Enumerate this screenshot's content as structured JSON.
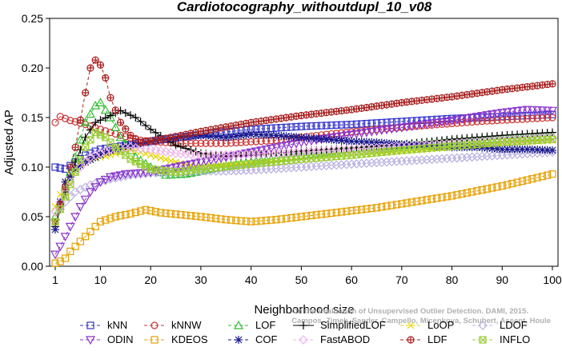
{
  "chart_data": {
    "type": "line",
    "title": "Cardiotocography_withoutdupl_10_v08",
    "xlabel": "Neighborhood size",
    "ylabel": "Adjusted AP",
    "xlim": [
      1,
      100
    ],
    "ylim": [
      0,
      0.25
    ],
    "xticks": [
      "1",
      "10",
      "20",
      "30",
      "40",
      "50",
      "60",
      "70",
      "80",
      "90",
      "100"
    ],
    "yticks": [
      "0.00",
      "0.05",
      "0.10",
      "0.15",
      "0.20",
      "0.25"
    ],
    "grid": false,
    "legend_position": "bottom",
    "watermark": [
      "On the Evaluation of Unsupervised Outlier Detection. DAMI, 2015.",
      "Campos, Zimek, Sander, Campello, Micenkova, Schubert, Assent, Houle"
    ],
    "series": [
      {
        "name": "kNN",
        "color": "#3333cc",
        "marker": "square",
        "dash": "4,3",
        "points": [
          [
            1,
            0.1
          ],
          [
            3,
            0.098
          ],
          [
            5,
            0.105
          ],
          [
            7,
            0.112
          ],
          [
            10,
            0.118
          ],
          [
            15,
            0.122
          ],
          [
            20,
            0.126
          ],
          [
            30,
            0.133
          ],
          [
            40,
            0.138
          ],
          [
            50,
            0.141
          ],
          [
            60,
            0.143
          ],
          [
            70,
            0.146
          ],
          [
            80,
            0.149
          ],
          [
            90,
            0.151
          ],
          [
            100,
            0.153
          ]
        ]
      },
      {
        "name": "kNNW",
        "color": "#cc3333",
        "marker": "circle",
        "dash": "4,3",
        "points": [
          [
            1,
            0.145
          ],
          [
            2,
            0.151
          ],
          [
            4,
            0.147
          ],
          [
            7,
            0.143
          ],
          [
            10,
            0.138
          ],
          [
            14,
            0.132
          ],
          [
            18,
            0.127
          ],
          [
            25,
            0.124
          ],
          [
            35,
            0.124
          ],
          [
            45,
            0.127
          ],
          [
            55,
            0.133
          ],
          [
            65,
            0.138
          ],
          [
            75,
            0.142
          ],
          [
            85,
            0.146
          ],
          [
            100,
            0.15
          ]
        ]
      },
      {
        "name": "LOF",
        "color": "#33bb33",
        "marker": "triangle",
        "dash": "4,3",
        "points": [
          [
            1,
            0.05
          ],
          [
            3,
            0.08
          ],
          [
            5,
            0.11
          ],
          [
            7,
            0.145
          ],
          [
            9,
            0.162
          ],
          [
            10,
            0.165
          ],
          [
            12,
            0.15
          ],
          [
            14,
            0.13
          ],
          [
            17,
            0.11
          ],
          [
            20,
            0.1
          ],
          [
            23,
            0.092
          ],
          [
            27,
            0.093
          ],
          [
            32,
            0.098
          ],
          [
            40,
            0.105
          ],
          [
            50,
            0.112
          ],
          [
            60,
            0.118
          ],
          [
            70,
            0.122
          ],
          [
            80,
            0.126
          ],
          [
            90,
            0.129
          ],
          [
            100,
            0.132
          ]
        ]
      },
      {
        "name": "SimplifiedLOF",
        "color": "#000000",
        "marker": "plus",
        "dash": "none",
        "points": [
          [
            1,
            0.04
          ],
          [
            3,
            0.075
          ],
          [
            5,
            0.105
          ],
          [
            7,
            0.13
          ],
          [
            9,
            0.145
          ],
          [
            12,
            0.152
          ],
          [
            14,
            0.157
          ],
          [
            17,
            0.15
          ],
          [
            20,
            0.138
          ],
          [
            25,
            0.122
          ],
          [
            30,
            0.114
          ],
          [
            35,
            0.111
          ],
          [
            40,
            0.112
          ],
          [
            50,
            0.116
          ],
          [
            60,
            0.119
          ],
          [
            70,
            0.123
          ],
          [
            80,
            0.128
          ],
          [
            90,
            0.132
          ],
          [
            100,
            0.135
          ]
        ]
      },
      {
        "name": "LoOP",
        "color": "#e6d600",
        "marker": "x",
        "dash": "4,3",
        "points": [
          [
            1,
            0.06
          ],
          [
            3,
            0.085
          ],
          [
            5,
            0.1
          ],
          [
            8,
            0.108
          ],
          [
            12,
            0.112
          ],
          [
            16,
            0.118
          ],
          [
            20,
            0.112
          ],
          [
            25,
            0.105
          ],
          [
            30,
            0.1
          ],
          [
            40,
            0.104
          ],
          [
            50,
            0.108
          ],
          [
            60,
            0.112
          ],
          [
            70,
            0.116
          ],
          [
            80,
            0.12
          ],
          [
            90,
            0.124
          ],
          [
            100,
            0.127
          ]
        ]
      },
      {
        "name": "LDOF",
        "color": "#b9b0e0",
        "marker": "diamond",
        "dash": "4,3",
        "points": [
          [
            1,
            0.055
          ],
          [
            3,
            0.065
          ],
          [
            5,
            0.075
          ],
          [
            8,
            0.082
          ],
          [
            12,
            0.088
          ],
          [
            16,
            0.092
          ],
          [
            20,
            0.094
          ],
          [
            25,
            0.095
          ],
          [
            30,
            0.096
          ],
          [
            35,
            0.096
          ],
          [
            40,
            0.097
          ],
          [
            50,
            0.1
          ],
          [
            60,
            0.103
          ],
          [
            70,
            0.106
          ],
          [
            80,
            0.109
          ],
          [
            90,
            0.112
          ],
          [
            100,
            0.115
          ]
        ]
      },
      {
        "name": "ODIN",
        "color": "#8833cc",
        "marker": "invtriangle",
        "dash": "4,3",
        "points": [
          [
            1,
            0.012
          ],
          [
            2,
            0.02
          ],
          [
            4,
            0.04
          ],
          [
            6,
            0.06
          ],
          [
            8,
            0.075
          ],
          [
            10,
            0.085
          ],
          [
            12,
            0.09
          ],
          [
            15,
            0.093
          ],
          [
            20,
            0.095
          ],
          [
            25,
            0.1
          ],
          [
            30,
            0.105
          ],
          [
            35,
            0.11
          ],
          [
            40,
            0.115
          ],
          [
            50,
            0.125
          ],
          [
            60,
            0.133
          ],
          [
            70,
            0.14
          ],
          [
            80,
            0.147
          ],
          [
            90,
            0.155
          ],
          [
            95,
            0.158
          ],
          [
            100,
            0.157
          ]
        ]
      },
      {
        "name": "KDEOS",
        "color": "#e6a000",
        "marker": "square",
        "dash": "4,3",
        "points": [
          [
            1,
            0.003
          ],
          [
            2,
            0.005
          ],
          [
            3,
            0.008
          ],
          [
            4,
            0.015
          ],
          [
            6,
            0.025
          ],
          [
            8,
            0.035
          ],
          [
            10,
            0.045
          ],
          [
            13,
            0.05
          ],
          [
            16,
            0.053
          ],
          [
            19,
            0.057
          ],
          [
            22,
            0.054
          ],
          [
            26,
            0.052
          ],
          [
            30,
            0.05
          ],
          [
            35,
            0.047
          ],
          [
            40,
            0.045
          ],
          [
            45,
            0.047
          ],
          [
            50,
            0.05
          ],
          [
            55,
            0.053
          ],
          [
            60,
            0.056
          ],
          [
            65,
            0.059
          ],
          [
            70,
            0.063
          ],
          [
            75,
            0.067
          ],
          [
            80,
            0.071
          ],
          [
            85,
            0.076
          ],
          [
            90,
            0.081
          ],
          [
            95,
            0.087
          ],
          [
            100,
            0.093
          ]
        ]
      },
      {
        "name": "COF",
        "color": "#1a1a8c",
        "marker": "asterisk",
        "dash": "4,3",
        "points": [
          [
            1,
            0.037
          ],
          [
            2,
            0.065
          ],
          [
            3,
            0.085
          ],
          [
            4,
            0.09
          ],
          [
            5,
            0.098
          ],
          [
            7,
            0.105
          ],
          [
            9,
            0.11
          ],
          [
            11,
            0.115
          ],
          [
            14,
            0.12
          ],
          [
            18,
            0.124
          ],
          [
            22,
            0.128
          ],
          [
            26,
            0.13
          ],
          [
            30,
            0.132
          ],
          [
            35,
            0.13
          ],
          [
            40,
            0.133
          ],
          [
            45,
            0.132
          ],
          [
            50,
            0.13
          ],
          [
            55,
            0.128
          ],
          [
            60,
            0.126
          ],
          [
            65,
            0.125
          ],
          [
            70,
            0.123
          ],
          [
            75,
            0.122
          ],
          [
            80,
            0.12
          ],
          [
            85,
            0.12
          ],
          [
            90,
            0.118
          ],
          [
            95,
            0.118
          ],
          [
            100,
            0.117
          ]
        ]
      },
      {
        "name": "FastABOD",
        "color": "#f0b4e6",
        "marker": "diamond",
        "dash": "4,3",
        "points": [
          [
            1,
            0.055
          ],
          [
            3,
            0.075
          ],
          [
            5,
            0.095
          ],
          [
            8,
            0.11
          ],
          [
            12,
            0.118
          ],
          [
            16,
            0.12
          ],
          [
            20,
            0.118
          ],
          [
            25,
            0.114
          ],
          [
            30,
            0.112
          ],
          [
            40,
            0.113
          ],
          [
            50,
            0.115
          ],
          [
            60,
            0.118
          ],
          [
            70,
            0.121
          ],
          [
            80,
            0.124
          ],
          [
            90,
            0.127
          ],
          [
            100,
            0.13
          ]
        ]
      },
      {
        "name": "LDF",
        "color": "#aa2222",
        "marker": "circleplus",
        "dash": "4,3",
        "points": [
          [
            1,
            0.045
          ],
          [
            3,
            0.08
          ],
          [
            5,
            0.12
          ],
          [
            7,
            0.175
          ],
          [
            8,
            0.2
          ],
          [
            9,
            0.208
          ],
          [
            10,
            0.203
          ],
          [
            11,
            0.19
          ],
          [
            12,
            0.17
          ],
          [
            14,
            0.145
          ],
          [
            16,
            0.132
          ],
          [
            18,
            0.125
          ],
          [
            22,
            0.128
          ],
          [
            30,
            0.136
          ],
          [
            40,
            0.145
          ],
          [
            50,
            0.152
          ],
          [
            60,
            0.158
          ],
          [
            70,
            0.165
          ],
          [
            80,
            0.171
          ],
          [
            90,
            0.178
          ],
          [
            100,
            0.184
          ]
        ]
      },
      {
        "name": "INFLO",
        "color": "#99cc33",
        "marker": "squarex",
        "dash": "4,3",
        "points": [
          [
            1,
            0.045
          ],
          [
            3,
            0.07
          ],
          [
            5,
            0.095
          ],
          [
            7,
            0.12
          ],
          [
            9,
            0.135
          ],
          [
            11,
            0.13
          ],
          [
            13,
            0.12
          ],
          [
            16,
            0.108
          ],
          [
            20,
            0.098
          ],
          [
            25,
            0.095
          ],
          [
            30,
            0.098
          ],
          [
            40,
            0.103
          ],
          [
            50,
            0.108
          ],
          [
            60,
            0.112
          ],
          [
            70,
            0.117
          ],
          [
            80,
            0.121
          ],
          [
            90,
            0.125
          ],
          [
            100,
            0.128
          ]
        ]
      }
    ]
  }
}
